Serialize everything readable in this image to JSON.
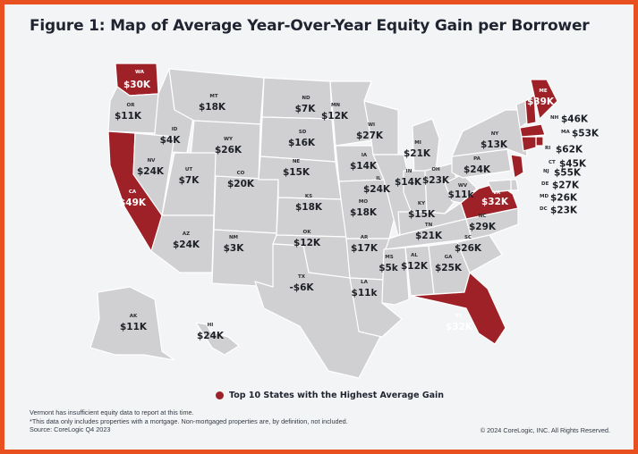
{
  "title": "Figure 1: Map of Average Year-Over-Year Equity Gain per Borrower",
  "colors": {
    "frame": "#e8501f",
    "top10": "#9e2128",
    "state": "#d0d0d2",
    "background": "#f3f4f6"
  },
  "states": [
    {
      "abbr": "WA",
      "value": "$30K",
      "top10": true
    },
    {
      "abbr": "OR",
      "value": "$11K",
      "top10": false
    },
    {
      "abbr": "CA",
      "value": "$49K",
      "top10": true
    },
    {
      "abbr": "ID",
      "value": "$4K",
      "top10": false
    },
    {
      "abbr": "NV",
      "value": "$24K",
      "top10": false
    },
    {
      "abbr": "MT",
      "value": "$18K",
      "top10": false
    },
    {
      "abbr": "WY",
      "value": "$26K",
      "top10": false
    },
    {
      "abbr": "UT",
      "value": "$7K",
      "top10": false
    },
    {
      "abbr": "AZ",
      "value": "$24K",
      "top10": false
    },
    {
      "abbr": "CO",
      "value": "$20K",
      "top10": false
    },
    {
      "abbr": "NM",
      "value": "$3K",
      "top10": false
    },
    {
      "abbr": "ND",
      "value": "$7K",
      "top10": false
    },
    {
      "abbr": "SD",
      "value": "$16K",
      "top10": false
    },
    {
      "abbr": "NE",
      "value": "$15K",
      "top10": false
    },
    {
      "abbr": "KS",
      "value": "$18K",
      "top10": false
    },
    {
      "abbr": "OK",
      "value": "$12K",
      "top10": false
    },
    {
      "abbr": "TX",
      "value": "-$6K",
      "top10": false
    },
    {
      "abbr": "MN",
      "value": "$12K",
      "top10": false
    },
    {
      "abbr": "IA",
      "value": "$14K",
      "top10": false
    },
    {
      "abbr": "MO",
      "value": "$18K",
      "top10": false
    },
    {
      "abbr": "AR",
      "value": "$17K",
      "top10": false
    },
    {
      "abbr": "LA",
      "value": "$11k",
      "top10": false
    },
    {
      "abbr": "WI",
      "value": "$27K",
      "top10": false
    },
    {
      "abbr": "IL",
      "value": "$24K",
      "top10": false
    },
    {
      "abbr": "MI",
      "value": "$21K",
      "top10": false
    },
    {
      "abbr": "IN",
      "value": "$14K",
      "top10": false
    },
    {
      "abbr": "OH",
      "value": "$23K",
      "top10": false
    },
    {
      "abbr": "KY",
      "value": "$15K",
      "top10": false
    },
    {
      "abbr": "TN",
      "value": "$21K",
      "top10": false
    },
    {
      "abbr": "MS",
      "value": "$5k",
      "top10": false
    },
    {
      "abbr": "AL",
      "value": "$12K",
      "top10": false
    },
    {
      "abbr": "GA",
      "value": "$25K",
      "top10": false
    },
    {
      "abbr": "FL",
      "value": "$32K",
      "top10": true
    },
    {
      "abbr": "SC",
      "value": "$26K",
      "top10": false
    },
    {
      "abbr": "NC",
      "value": "$29K",
      "top10": false
    },
    {
      "abbr": "VA",
      "value": "$32K",
      "top10": true
    },
    {
      "abbr": "WV",
      "value": "$11k",
      "top10": false
    },
    {
      "abbr": "PA",
      "value": "$24K",
      "top10": false
    },
    {
      "abbr": "NY",
      "value": "$13K",
      "top10": false
    },
    {
      "abbr": "ME",
      "value": "$39K",
      "top10": true
    },
    {
      "abbr": "NH",
      "value": "$46K",
      "top10": true
    },
    {
      "abbr": "MA",
      "value": "$53K",
      "top10": true
    },
    {
      "abbr": "RI",
      "value": "$62K",
      "top10": true
    },
    {
      "abbr": "CT",
      "value": "$45K",
      "top10": true
    },
    {
      "abbr": "NJ",
      "value": "$55K",
      "top10": true
    },
    {
      "abbr": "DE",
      "value": "$27K",
      "top10": false
    },
    {
      "abbr": "MD",
      "value": "$26K",
      "top10": false
    },
    {
      "abbr": "DC",
      "value": "$23K",
      "top10": false
    },
    {
      "abbr": "AK",
      "value": "$11K",
      "top10": false
    },
    {
      "abbr": "HI",
      "value": "$24K",
      "top10": false
    }
  ],
  "legend": {
    "label": "Top 10 States with the Highest Average Gain"
  },
  "notes": [
    "Vermont has insufficient equity data to report at this time.",
    "*This data only includes properties with a mortgage. Non-mortgaged properties are, by definition, not included.",
    "Source: CoreLogic Q4 2023"
  ],
  "copyright": "© 2024 CoreLogic, INC. All Rights Reserved."
}
